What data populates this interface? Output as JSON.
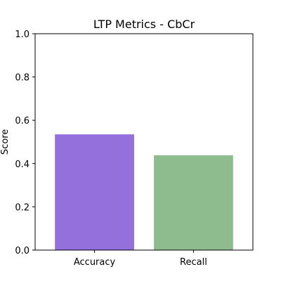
{
  "chart_data": {
    "type": "bar",
    "title": "LTP Metrics - CbCr",
    "xlabel": "",
    "ylabel": "Score",
    "categories": [
      "Accuracy",
      "Recall"
    ],
    "values": [
      0.535,
      0.438
    ],
    "colors": [
      "#9370DB",
      "#8FBC8F"
    ],
    "ylim": [
      0,
      1.0
    ],
    "yticks": [
      "0.0",
      "0.2",
      "0.4",
      "0.6",
      "0.8",
      "1.0"
    ],
    "grid": false,
    "legend": "none"
  }
}
